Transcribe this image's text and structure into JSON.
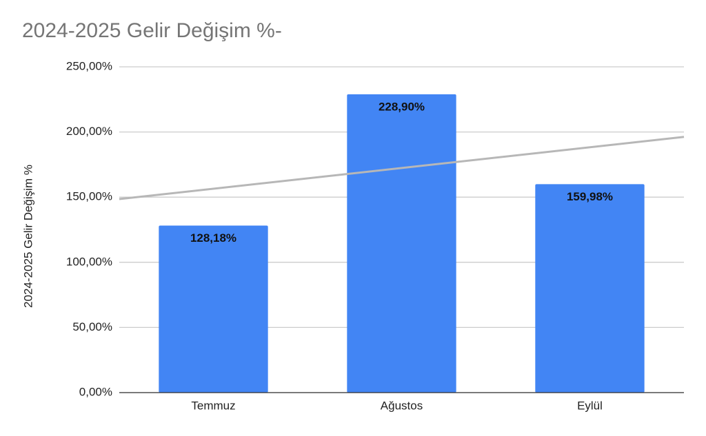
{
  "chart_data": {
    "type": "bar",
    "title": "2024-2025 Gelir Değişim %-",
    "y_label": "2024-2025 Gelir Değişim %",
    "categories": [
      "Temmuz",
      "Ağustos",
      "Eylül"
    ],
    "values": [
      128.18,
      228.9,
      159.98
    ],
    "value_labels": [
      "128,18%",
      "228,90%",
      "159,98%"
    ],
    "color": "#4285f4",
    "ylim": [
      0,
      250
    ],
    "yticks": [
      {
        "value": 0,
        "label": "0,00%"
      },
      {
        "value": 50,
        "label": "50,00%"
      },
      {
        "value": 100,
        "label": "100,00%"
      },
      {
        "value": 150,
        "label": "150,00%"
      },
      {
        "value": 200,
        "label": "200,00%"
      },
      {
        "value": 250,
        "label": "250,00%"
      }
    ],
    "grid": true,
    "trendline": {
      "type": "linear",
      "color": "#b7b7b7"
    }
  }
}
